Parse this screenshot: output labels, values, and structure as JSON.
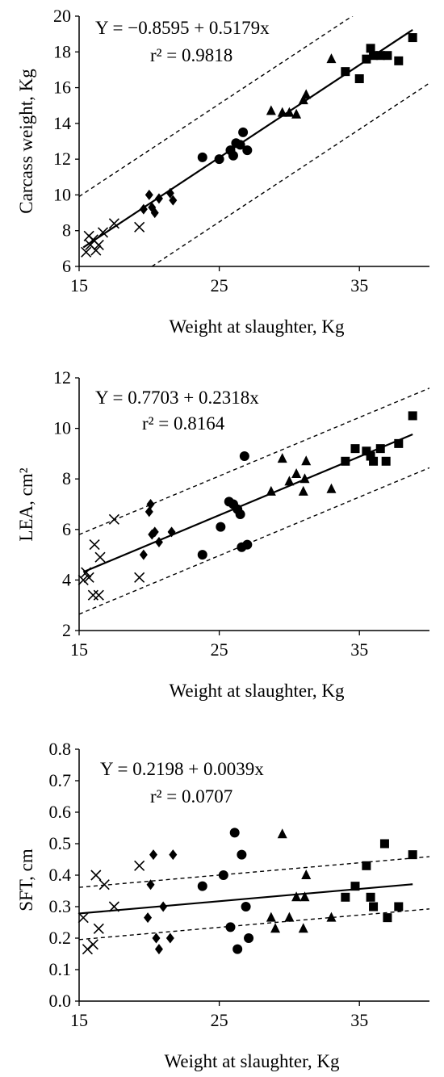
{
  "chart_data": [
    {
      "type": "scatter",
      "title": "",
      "xlabel": "Weight at slaughter, Kg",
      "ylabel": "Carcass weight, Kg",
      "xlim": [
        15,
        40
      ],
      "ylim": [
        6,
        20
      ],
      "xticks": [
        15,
        25,
        35
      ],
      "yticks": [
        6,
        8,
        10,
        12,
        14,
        16,
        18,
        20
      ],
      "tick_labels_x": [
        "15",
        "25",
        "35"
      ],
      "tick_labels_y": [
        "6",
        "8",
        "10",
        "12",
        "14",
        "16",
        "18",
        "20"
      ],
      "equation": "Y = −0.8595 + 0.5179x",
      "r2": "r² = 0.9818",
      "fit": {
        "intercept": -0.8595,
        "slope": 0.5179,
        "x_range": [
          15.3,
          38.8
        ]
      },
      "bands": {
        "upper_offset": 3.0,
        "lower_offset": -3.6
      },
      "series": [
        {
          "marker": "x",
          "x": [
            15.5,
            15.7,
            15.8,
            16.0,
            16.2,
            16.4,
            16.7,
            17.5,
            19.3
          ],
          "y": [
            6.8,
            7.7,
            7.2,
            7.5,
            6.9,
            7.2,
            7.9,
            8.4,
            8.2
          ]
        },
        {
          "marker": "diamond",
          "x": [
            19.6,
            20.0,
            20.2,
            20.4,
            20.7,
            21.5,
            21.7
          ],
          "y": [
            9.2,
            10.0,
            9.3,
            9.0,
            9.8,
            10.1,
            9.7
          ]
        },
        {
          "marker": "circle",
          "x": [
            23.8,
            25.0,
            25.8,
            26.0,
            26.2,
            26.5,
            26.7,
            27.0
          ],
          "y": [
            12.1,
            12.0,
            12.5,
            12.2,
            12.9,
            12.8,
            13.5,
            12.5
          ]
        },
        {
          "marker": "triangle",
          "x": [
            28.7,
            29.5,
            30.0,
            30.5,
            31.0,
            31.2,
            33.0
          ],
          "y": [
            14.7,
            14.6,
            14.6,
            14.5,
            15.3,
            15.6,
            17.6
          ]
        },
        {
          "marker": "square",
          "x": [
            34.0,
            35.0,
            35.5,
            35.8,
            36.0,
            36.5,
            37.0,
            37.8,
            38.8
          ],
          "y": [
            16.9,
            16.5,
            17.6,
            18.2,
            17.8,
            17.8,
            17.8,
            17.5,
            18.8
          ]
        }
      ]
    },
    {
      "type": "scatter",
      "title": "",
      "xlabel": "Weight at slaughter, Kg",
      "ylabel": "LEA, cm²",
      "xlim": [
        15,
        40
      ],
      "ylim": [
        2,
        12
      ],
      "xticks": [
        15,
        25,
        35
      ],
      "yticks": [
        2,
        4,
        6,
        8,
        10,
        12
      ],
      "tick_labels_x": [
        "15",
        "25",
        "35"
      ],
      "tick_labels_y": [
        "2",
        "4",
        "6",
        "8",
        "10",
        "12"
      ],
      "equation": "Y = 0.7703 + 0.2318x",
      "r2": "r² = 0.8164",
      "fit": {
        "intercept": 0.7703,
        "slope": 0.2318,
        "x_range": [
          15.3,
          38.8
        ]
      },
      "bands": {
        "upper_offset": 1.55,
        "lower_offset": -1.6
      },
      "series": [
        {
          "marker": "x",
          "x": [
            15.3,
            15.5,
            15.7,
            16.0,
            16.1,
            16.4,
            16.5,
            17.5,
            19.3
          ],
          "y": [
            4.0,
            4.3,
            4.1,
            3.4,
            5.4,
            3.4,
            4.9,
            6.4,
            4.1
          ]
        },
        {
          "marker": "diamond",
          "x": [
            19.6,
            20.0,
            20.1,
            20.2,
            20.4,
            20.7,
            21.6
          ],
          "y": [
            5.0,
            6.7,
            7.0,
            5.8,
            5.9,
            5.5,
            5.9
          ]
        },
        {
          "marker": "circle",
          "x": [
            23.8,
            25.1,
            25.7,
            26.0,
            26.3,
            26.5,
            26.6,
            26.8,
            27.0
          ],
          "y": [
            5.0,
            6.1,
            7.1,
            7.0,
            6.8,
            6.6,
            5.3,
            8.9,
            5.4
          ]
        },
        {
          "marker": "triangle",
          "x": [
            28.7,
            29.5,
            30.0,
            30.5,
            31.0,
            31.1,
            31.2,
            33.0
          ],
          "y": [
            7.5,
            8.8,
            7.9,
            8.2,
            7.5,
            8.0,
            8.7,
            7.6
          ]
        },
        {
          "marker": "square",
          "x": [
            34.0,
            34.7,
            35.5,
            35.8,
            36.0,
            36.5,
            36.9,
            37.8,
            38.8
          ],
          "y": [
            8.7,
            9.2,
            9.1,
            8.9,
            8.7,
            9.2,
            8.7,
            9.4,
            10.5
          ]
        }
      ]
    },
    {
      "type": "scatter",
      "title": "",
      "xlabel": "Weight at slaughter, Kg",
      "ylabel": "SFT, cm",
      "xlim": [
        15,
        40
      ],
      "ylim": [
        0,
        0.8
      ],
      "xticks": [
        15,
        25,
        35
      ],
      "yticks": [
        0,
        0.1,
        0.2,
        0.3,
        0.4,
        0.5,
        0.6,
        0.7,
        0.8
      ],
      "tick_labels_x": [
        "15",
        "25",
        "35"
      ],
      "tick_labels_y": [
        "0.0",
        "0.1",
        "0.2",
        "0.3",
        "0.4",
        "0.5",
        "0.6",
        "0.7",
        "0.8"
      ],
      "equation": "Y = 0.2198 + 0.0039x",
      "r2": "r² = 0.0707",
      "fit": {
        "intercept": 0.2198,
        "slope": 0.0039,
        "x_range": [
          15.0,
          38.8
        ]
      },
      "bands": {
        "upper_offset": 0.083,
        "lower_offset": -0.083
      },
      "series": [
        {
          "marker": "x",
          "x": [
            15.3,
            15.6,
            16.0,
            16.2,
            16.4,
            16.8,
            17.5,
            19.3
          ],
          "y": [
            0.265,
            0.165,
            0.18,
            0.4,
            0.23,
            0.37,
            0.3,
            0.43
          ]
        },
        {
          "marker": "diamond",
          "x": [
            19.9,
            20.1,
            20.3,
            20.5,
            20.7,
            21.0,
            21.5,
            21.7
          ],
          "y": [
            0.265,
            0.37,
            0.465,
            0.2,
            0.165,
            0.3,
            0.2,
            0.465
          ]
        },
        {
          "marker": "circle",
          "x": [
            23.8,
            25.3,
            25.8,
            26.1,
            26.3,
            26.6,
            26.9,
            27.1
          ],
          "y": [
            0.365,
            0.4,
            0.235,
            0.535,
            0.165,
            0.465,
            0.3,
            0.2
          ]
        },
        {
          "marker": "triangle",
          "x": [
            28.7,
            29.0,
            29.5,
            30.0,
            30.5,
            31.0,
            31.1,
            31.2,
            33.0
          ],
          "y": [
            0.265,
            0.23,
            0.53,
            0.265,
            0.33,
            0.23,
            0.33,
            0.4,
            0.265
          ]
        },
        {
          "marker": "square",
          "x": [
            34.0,
            34.7,
            35.5,
            35.8,
            36.0,
            36.8,
            37.0,
            37.8,
            38.8
          ],
          "y": [
            0.33,
            0.365,
            0.43,
            0.33,
            0.3,
            0.5,
            0.265,
            0.3,
            0.465
          ]
        }
      ]
    }
  ]
}
